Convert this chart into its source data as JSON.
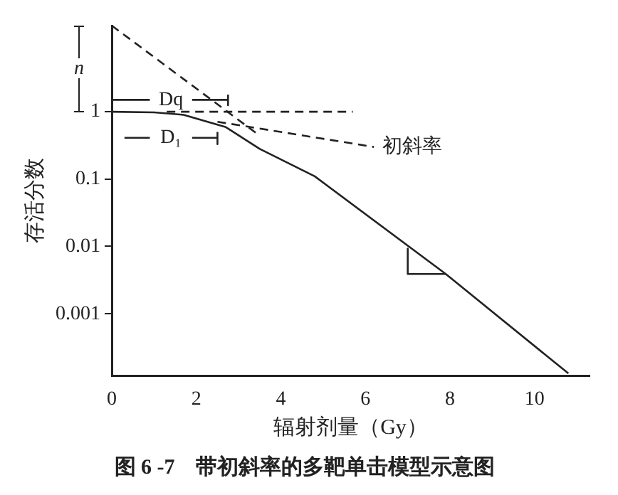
{
  "chart_data": {
    "type": "line",
    "title": "图 6 -7    带初斜率的多靶单击模型示意图",
    "xlabel": "辐射剂量（Gy）",
    "ylabel": "存活分数",
    "log": "y",
    "grid": false,
    "legend": false,
    "marker": "none",
    "xlim": [
      0,
      11.3
    ],
    "xticks": [
      0,
      2,
      4,
      6,
      8,
      10
    ],
    "ylim": [
      0.00012,
      19
    ],
    "yticks": [
      1,
      0.1,
      0.01,
      0.001
    ],
    "series": [
      {
        "color": "#222222",
        "line_style": "solid",
        "x": [
          0,
          1,
          1.7,
          2.7,
          3.5,
          4.8,
          7.9,
          10.8
        ],
        "values": [
          1,
          0.98,
          0.9,
          0.59,
          0.28,
          0.11,
          0.0039,
          0.00013
        ]
      },
      {
        "color": "#222222",
        "line_style": "dashed",
        "x": [
          0,
          3.5
        ],
        "values": [
          19,
          0.44
        ]
      },
      {
        "color": "#222222",
        "line_style": "dashed",
        "x": [
          1.3,
          5.7
        ],
        "values": [
          1,
          1
        ]
      },
      {
        "color": "#222222",
        "line_style": "dashed",
        "x": [
          2.5,
          6.2
        ],
        "values": [
          0.71,
          0.3
        ]
      },
      {
        "color": "#222222",
        "line_style": "solid",
        "x": [
          7,
          7,
          7.9
        ],
        "values": [
          0.0093,
          0.0039,
          0.0039
        ]
      },
      {
        "color": "#222222",
        "line_style": "solid",
        "x": [
          0,
          0.9,
          1.4,
          1.9,
          2.75,
          2.75,
          2.75
        ],
        "values": [
          1.5,
          1.5,
          null,
          1.5,
          1.5,
          1.25,
          1.8
        ]
      },
      {
        "color": "#222222",
        "line_style": "solid",
        "x": [
          0.3,
          0.9,
          1.4,
          1.9,
          2.5,
          2.5,
          2.5
        ],
        "values": [
          0.41,
          0.41,
          null,
          0.41,
          0.41,
          0.33,
          0.5
        ]
      }
    ],
    "annotations": [
      "n",
      "Dq",
      "D₁",
      "初斜率"
    ]
  }
}
